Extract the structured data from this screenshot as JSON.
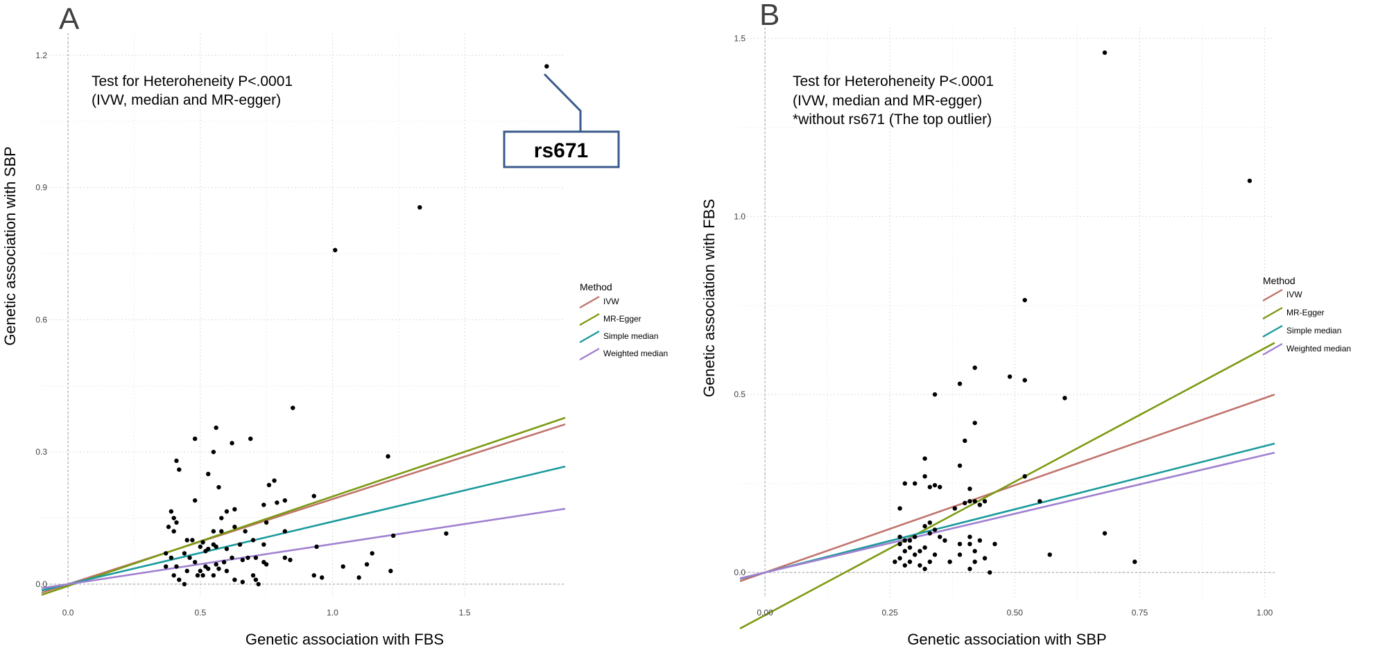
{
  "chart_data": [
    {
      "type": "scatter",
      "panel_label": "A",
      "xlabel": "Genetic association with FBS",
      "ylabel": "Genetic association with SBP",
      "xlim": [
        -0.1,
        1.88
      ],
      "ylim": [
        -0.03,
        1.25
      ],
      "xticks": [
        0.0,
        0.5,
        1.0,
        1.5
      ],
      "xtick_labels": [
        "0.0",
        "0.5",
        "1.0",
        "1.5"
      ],
      "yticks": [
        0.0,
        0.3,
        0.6,
        0.9,
        1.2
      ],
      "ytick_labels": [
        "0.0",
        "0.3",
        "0.6",
        "0.9",
        "1.2"
      ],
      "grid": true,
      "annotation_lines": [
        "Test for Heteroheneity P<.0001",
        "(IVW, median and MR-egger)"
      ],
      "callout": {
        "label": "rs671",
        "point": [
          1.81,
          1.175
        ]
      },
      "legend": {
        "title": "Method",
        "entries": [
          {
            "label": "IVW",
            "color": "#c0736b"
          },
          {
            "label": "MR-Egger",
            "color": "#7a9a10"
          },
          {
            "label": "Simple median",
            "color": "#1a9a9c"
          },
          {
            "label": "Weighted median",
            "color": "#a080d0"
          }
        ]
      },
      "lines": [
        {
          "name": "IVW",
          "color": "#c0736b",
          "intercept": 0.0,
          "slope": 0.193
        },
        {
          "name": "MR-Egger",
          "color": "#7a9a10",
          "intercept": -0.004,
          "slope": 0.203
        },
        {
          "name": "Simple median",
          "color": "#1a9a9c",
          "intercept": 0.0,
          "slope": 0.142
        },
        {
          "name": "Weighted median",
          "color": "#a080d0",
          "intercept": 0.0,
          "slope": 0.091
        }
      ],
      "points": [
        [
          1.81,
          1.175
        ],
        [
          1.33,
          0.855
        ],
        [
          1.01,
          0.758
        ],
        [
          0.85,
          0.4
        ],
        [
          0.56,
          0.355
        ],
        [
          0.48,
          0.33
        ],
        [
          0.69,
          0.33
        ],
        [
          0.62,
          0.32
        ],
        [
          0.55,
          0.3
        ],
        [
          0.41,
          0.28
        ],
        [
          1.21,
          0.29
        ],
        [
          0.42,
          0.26
        ],
        [
          0.53,
          0.25
        ],
        [
          0.57,
          0.22
        ],
        [
          0.76,
          0.225
        ],
        [
          0.78,
          0.235
        ],
        [
          0.82,
          0.19
        ],
        [
          0.79,
          0.185
        ],
        [
          0.48,
          0.19
        ],
        [
          0.93,
          0.2
        ],
        [
          0.63,
          0.17
        ],
        [
          0.74,
          0.18
        ],
        [
          0.39,
          0.165
        ],
        [
          0.6,
          0.165
        ],
        [
          0.4,
          0.15
        ],
        [
          0.41,
          0.14
        ],
        [
          0.38,
          0.13
        ],
        [
          0.4,
          0.12
        ],
        [
          0.58,
          0.15
        ],
        [
          0.63,
          0.13
        ],
        [
          0.67,
          0.12
        ],
        [
          0.75,
          0.14
        ],
        [
          0.55,
          0.12
        ],
        [
          0.58,
          0.12
        ],
        [
          0.45,
          0.1
        ],
        [
          0.47,
          0.1
        ],
        [
          0.51,
          0.095
        ],
        [
          0.53,
          0.08
        ],
        [
          0.55,
          0.09
        ],
        [
          0.56,
          0.085
        ],
        [
          0.6,
          0.08
        ],
        [
          0.65,
          0.09
        ],
        [
          0.7,
          0.1
        ],
        [
          0.74,
          0.09
        ],
        [
          0.82,
          0.12
        ],
        [
          1.23,
          0.11
        ],
        [
          1.43,
          0.115
        ],
        [
          0.94,
          0.085
        ],
        [
          0.5,
          0.085
        ],
        [
          0.52,
          0.075
        ],
        [
          0.44,
          0.07
        ],
        [
          0.46,
          0.06
        ],
        [
          0.39,
          0.06
        ],
        [
          0.37,
          0.07
        ],
        [
          0.48,
          0.05
        ],
        [
          0.52,
          0.04
        ],
        [
          0.56,
          0.045
        ],
        [
          0.59,
          0.05
        ],
        [
          0.62,
          0.06
        ],
        [
          0.66,
          0.055
        ],
        [
          0.68,
          0.06
        ],
        [
          0.71,
          0.06
        ],
        [
          0.74,
          0.05
        ],
        [
          0.75,
          0.045
        ],
        [
          0.82,
          0.06
        ],
        [
          0.84,
          0.055
        ],
        [
          0.5,
          0.03
        ],
        [
          0.53,
          0.035
        ],
        [
          0.57,
          0.035
        ],
        [
          0.6,
          0.03
        ],
        [
          0.41,
          0.04
        ],
        [
          0.45,
          0.03
        ],
        [
          0.37,
          0.04
        ],
        [
          0.4,
          0.02
        ],
        [
          0.42,
          0.01
        ],
        [
          0.44,
          0.0
        ],
        [
          0.49,
          0.02
        ],
        [
          0.51,
          0.02
        ],
        [
          0.55,
          0.02
        ],
        [
          0.63,
          0.01
        ],
        [
          0.66,
          0.005
        ],
        [
          0.7,
          0.02
        ],
        [
          0.71,
          0.01
        ],
        [
          0.72,
          0.0
        ],
        [
          0.93,
          0.02
        ],
        [
          0.96,
          0.015
        ],
        [
          1.04,
          0.04
        ],
        [
          1.1,
          0.015
        ],
        [
          1.13,
          0.045
        ],
        [
          1.15,
          0.07
        ],
        [
          1.22,
          0.03
        ]
      ]
    },
    {
      "type": "scatter",
      "panel_label": "B",
      "xlabel": "Genetic association with SBP",
      "ylabel": "Genetic association with FBS",
      "xlim": [
        -0.05,
        1.02
      ],
      "ylim": [
        -0.07,
        1.53
      ],
      "xticks": [
        0.0,
        0.25,
        0.5,
        0.75,
        1.0
      ],
      "xtick_labels": [
        "0.00",
        "0.25",
        "0.50",
        "0.75",
        "1.00"
      ],
      "yticks": [
        0.0,
        0.5,
        1.0,
        1.5
      ],
      "ytick_labels": [
        "0.0",
        "0.5",
        "1.0",
        "1.5"
      ],
      "grid": true,
      "annotation_lines": [
        "Test for Heteroheneity P<.0001",
        "(IVW, median and MR-egger)",
        "*without rs671 (The top outlier)"
      ],
      "legend": {
        "title": "Method",
        "entries": [
          {
            "label": "IVW",
            "color": "#c0736b"
          },
          {
            "label": "MR-Egger",
            "color": "#7a9a10"
          },
          {
            "label": "Simple median",
            "color": "#1a9a9c"
          },
          {
            "label": "Weighted median",
            "color": "#a080d0"
          }
        ]
      },
      "lines": [
        {
          "name": "IVW",
          "color": "#c0736b",
          "intercept": 0.0,
          "slope": 0.49
        },
        {
          "name": "MR-Egger",
          "color": "#7a9a10",
          "intercept": -0.12,
          "slope": 0.75
        },
        {
          "name": "Simple median",
          "color": "#1a9a9c",
          "intercept": 0.0,
          "slope": 0.355
        },
        {
          "name": "Weighted median",
          "color": "#a080d0",
          "intercept": 0.0,
          "slope": 0.33
        }
      ],
      "points": [
        [
          0.68,
          1.46
        ],
        [
          0.97,
          1.1
        ],
        [
          0.52,
          0.765
        ],
        [
          0.6,
          0.49
        ],
        [
          0.49,
          0.55
        ],
        [
          0.52,
          0.54
        ],
        [
          0.39,
          0.53
        ],
        [
          0.42,
          0.575
        ],
        [
          0.34,
          0.5
        ],
        [
          0.42,
          0.42
        ],
        [
          0.4,
          0.37
        ],
        [
          0.39,
          0.3
        ],
        [
          0.32,
          0.32
        ],
        [
          0.32,
          0.27
        ],
        [
          0.28,
          0.25
        ],
        [
          0.3,
          0.25
        ],
        [
          0.33,
          0.24
        ],
        [
          0.34,
          0.245
        ],
        [
          0.35,
          0.24
        ],
        [
          0.41,
          0.235
        ],
        [
          0.44,
          0.2
        ],
        [
          0.43,
          0.19
        ],
        [
          0.42,
          0.2
        ],
        [
          0.41,
          0.2
        ],
        [
          0.4,
          0.195
        ],
        [
          0.38,
          0.18
        ],
        [
          0.52,
          0.27
        ],
        [
          0.55,
          0.2
        ],
        [
          0.27,
          0.18
        ],
        [
          0.33,
          0.14
        ],
        [
          0.32,
          0.13
        ],
        [
          0.34,
          0.12
        ],
        [
          0.33,
          0.11
        ],
        [
          0.35,
          0.1
        ],
        [
          0.3,
          0.1
        ],
        [
          0.28,
          0.09
        ],
        [
          0.27,
          0.08
        ],
        [
          0.29,
          0.07
        ],
        [
          0.31,
          0.06
        ],
        [
          0.32,
          0.07
        ],
        [
          0.34,
          0.05
        ],
        [
          0.3,
          0.05
        ],
        [
          0.28,
          0.06
        ],
        [
          0.27,
          0.04
        ],
        [
          0.29,
          0.03
        ],
        [
          0.31,
          0.02
        ],
        [
          0.33,
          0.03
        ],
        [
          0.26,
          0.03
        ],
        [
          0.28,
          0.02
        ],
        [
          0.36,
          0.09
        ],
        [
          0.39,
          0.08
        ],
        [
          0.41,
          0.1
        ],
        [
          0.43,
          0.09
        ],
        [
          0.41,
          0.08
        ],
        [
          0.42,
          0.06
        ],
        [
          0.39,
          0.05
        ],
        [
          0.44,
          0.04
        ],
        [
          0.46,
          0.08
        ],
        [
          0.42,
          0.03
        ],
        [
          0.41,
          0.01
        ],
        [
          0.37,
          0.03
        ],
        [
          0.45,
          0.0
        ],
        [
          0.32,
          0.01
        ],
        [
          0.57,
          0.05
        ],
        [
          0.68,
          0.11
        ],
        [
          0.74,
          0.03
        ],
        [
          0.27,
          0.1
        ],
        [
          0.29,
          0.09
        ]
      ]
    }
  ]
}
